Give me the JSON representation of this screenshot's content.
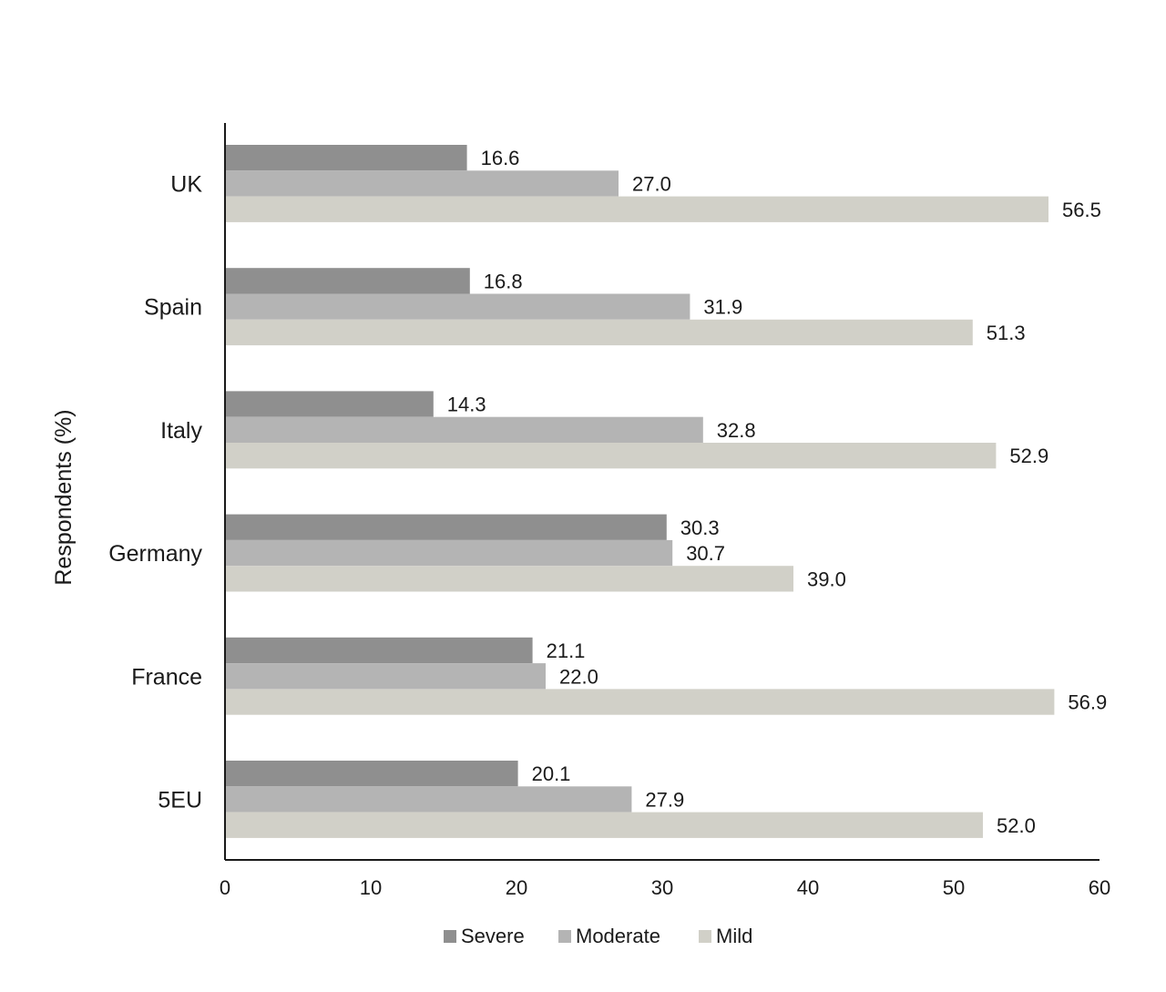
{
  "chart_data": {
    "type": "bar",
    "orientation": "horizontal",
    "title": "",
    "xlabel": "",
    "ylabel": "Respondents (%)",
    "categories": [
      "UK",
      "Spain",
      "Italy",
      "Germany",
      "France",
      "5EU"
    ],
    "series": [
      {
        "name": "Severe",
        "color": "#8f8f8f",
        "values": [
          16.6,
          16.8,
          14.3,
          30.3,
          21.1,
          20.1
        ],
        "labels": [
          "16.6",
          "16.8",
          "14.3",
          "30.3",
          "21.1",
          "20.1"
        ]
      },
      {
        "name": "Moderate",
        "color": "#b4b4b4",
        "values": [
          27.0,
          31.9,
          32.8,
          30.7,
          22.0,
          27.9
        ],
        "labels": [
          "27.0",
          "31.9",
          "32.8",
          "30.7",
          "22.0",
          "27.9"
        ]
      },
      {
        "name": "Mild",
        "color": "#d1d0c8",
        "values": [
          56.5,
          51.3,
          52.9,
          39.0,
          56.9,
          52.0
        ],
        "labels": [
          "56.5",
          "51.3",
          "52.9",
          "39.0",
          "56.9",
          "52.0"
        ]
      }
    ],
    "xlim": [
      0,
      60
    ],
    "xticks": [
      0,
      10,
      20,
      30,
      40,
      50,
      60
    ],
    "xtick_labels": [
      "0",
      "10",
      "20",
      "30",
      "40",
      "50",
      "60"
    ],
    "grid": false,
    "legend_position": "bottom"
  }
}
